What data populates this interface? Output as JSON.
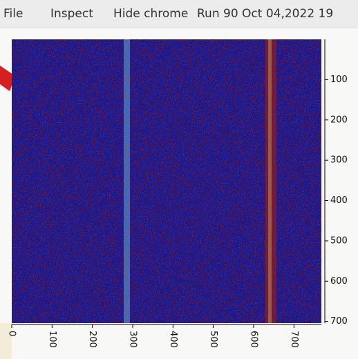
{
  "menu": [
    "File",
    "Inspect",
    "Hide chrome"
  ],
  "chart_data": {
    "type": "image",
    "title": "Run 90 Oct 04,2022 19",
    "xlim": [
      0,
      768
    ],
    "ylim": [
      0,
      704
    ],
    "y_inverted": true,
    "xticks": [
      0,
      100,
      200,
      300,
      400,
      500,
      600,
      700
    ],
    "yticks": [
      100,
      200,
      300,
      400,
      500,
      600,
      700
    ]
  }
}
